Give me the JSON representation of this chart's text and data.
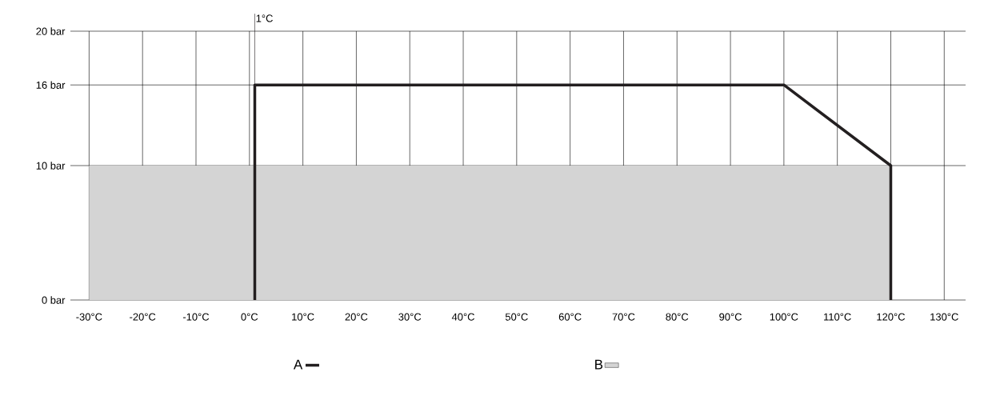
{
  "chart_data": {
    "type": "line",
    "xlim": [
      -33.5,
      134
    ],
    "ylim": [
      0,
      20
    ],
    "xticks": [
      {
        "value": -30,
        "label": "-30°C"
      },
      {
        "value": -20,
        "label": "-20°C"
      },
      {
        "value": -10,
        "label": "-10°C"
      },
      {
        "value": 0,
        "label": "0°C"
      },
      {
        "value": 10,
        "label": "10°C"
      },
      {
        "value": 20,
        "label": "20°C"
      },
      {
        "value": 30,
        "label": "30°C"
      },
      {
        "value": 40,
        "label": "40°C"
      },
      {
        "value": 50,
        "label": "50°C"
      },
      {
        "value": 60,
        "label": "60°C"
      },
      {
        "value": 70,
        "label": "70°C"
      },
      {
        "value": 80,
        "label": "80°C"
      },
      {
        "value": 90,
        "label": "90°C"
      },
      {
        "value": 100,
        "label": "100°C"
      },
      {
        "value": 110,
        "label": "110°C"
      },
      {
        "value": 120,
        "label": "120°C"
      },
      {
        "value": 130,
        "label": "130°C"
      }
    ],
    "yticks": [
      {
        "value": 0,
        "label": "0 bar"
      },
      {
        "value": 10,
        "label": "10 bar"
      },
      {
        "value": 16,
        "label": "16 bar"
      },
      {
        "value": 20,
        "label": "20 bar"
      }
    ],
    "grid": true,
    "legend": "bottom",
    "ref_lines": [
      {
        "axis": "x",
        "value": 1,
        "label": "1°C",
        "color": "#231f20"
      }
    ],
    "series": [
      {
        "name": "A",
        "color": "#231f20",
        "x": [
          1,
          1,
          100,
          120,
          120
        ],
        "values": [
          0,
          16,
          16,
          10,
          0
        ]
      },
      {
        "name": "B",
        "type": "area",
        "color": "#d4d4d4",
        "x": [
          -30,
          120
        ],
        "values": [
          10,
          10
        ]
      }
    ]
  }
}
